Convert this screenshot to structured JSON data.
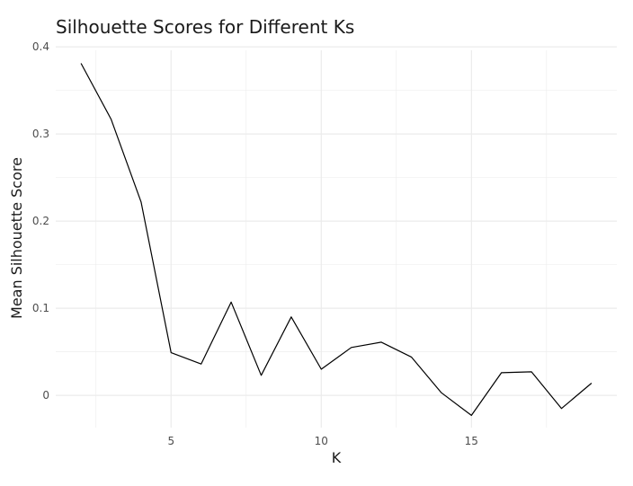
{
  "chart_data": {
    "type": "line",
    "title": "Silhouette Scores for Different Ks",
    "xlabel": "K",
    "ylabel": "Mean Silhouette Score",
    "xlim": [
      1.16,
      19.84
    ],
    "ylim": [
      -0.037,
      0.396
    ],
    "x_ticks": [
      5,
      10,
      15
    ],
    "x_tick_labels": [
      "5",
      "10",
      "15"
    ],
    "y_ticks": [
      0,
      0.1,
      0.2,
      0.3,
      0.4
    ],
    "y_tick_labels": [
      "0",
      "0.1",
      "0.2",
      "0.3",
      "0.4"
    ],
    "grid": true,
    "background": "#ffffff",
    "grid_color": "#ebebeb",
    "line_color": "#000000",
    "series": [
      {
        "x": [
          2,
          3,
          4,
          5,
          6,
          7,
          8,
          9,
          10,
          11,
          12,
          13,
          14,
          15,
          16,
          17,
          18,
          19
        ],
        "values": [
          0.381,
          0.317,
          0.222,
          0.049,
          0.036,
          0.107,
          0.023,
          0.09,
          0.03,
          0.055,
          0.061,
          0.044,
          0.003,
          -0.023,
          0.026,
          0.027,
          -0.015,
          0.014
        ]
      }
    ]
  }
}
